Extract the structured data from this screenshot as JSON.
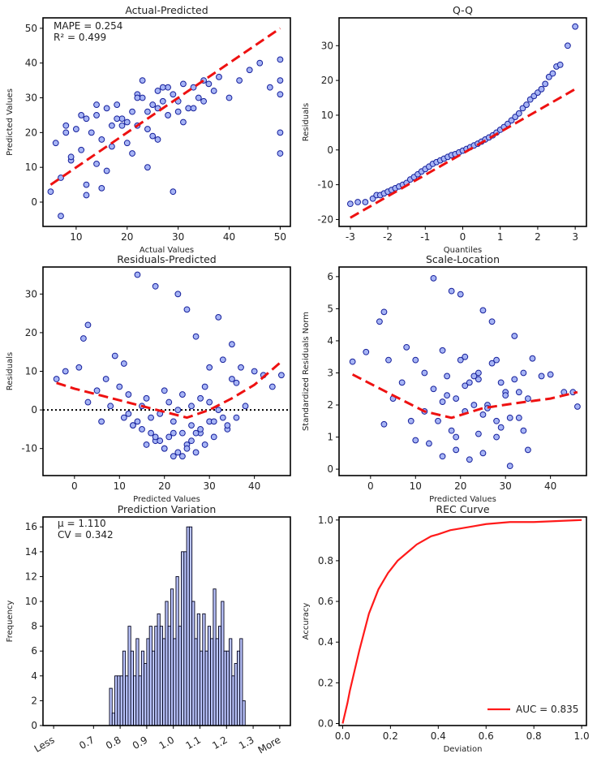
{
  "chart_data": [
    {
      "id": "actual_predicted",
      "type": "scatter",
      "title": "Actual-Predicted",
      "xlabel": "Actual Values",
      "ylabel": "Predicted Values",
      "xlim": [
        3.5,
        52
      ],
      "ylim": [
        -7,
        53
      ],
      "xticks": [
        10,
        20,
        30,
        40,
        50
      ],
      "yticks": [
        0,
        10,
        20,
        30,
        40,
        50
      ],
      "annotations": [
        "MAPE = 0.254",
        "R² = 0.499"
      ],
      "reference_line": {
        "x": [
          5,
          50
        ],
        "y": [
          5,
          50
        ],
        "style": "red dashed"
      },
      "series": [
        {
          "name": "samples",
          "x": [
            5,
            6,
            7,
            8,
            9,
            10,
            11,
            12,
            13,
            14,
            15,
            16,
            17,
            18,
            19,
            20,
            21,
            22,
            23,
            24,
            25,
            26,
            27,
            28,
            29,
            30,
            31,
            32,
            33,
            34,
            35,
            36,
            37,
            38,
            40,
            42,
            44,
            46,
            48,
            50,
            50,
            50,
            50,
            50,
            7,
            9,
            12,
            14,
            17,
            22,
            24,
            28,
            31,
            12,
            16,
            20,
            25,
            30,
            35,
            14,
            18,
            22,
            26,
            33,
            8,
            11,
            19,
            23,
            27,
            29,
            21,
            24,
            15,
            26
          ],
          "y": [
            3,
            17,
            -4,
            22,
            12,
            21,
            15,
            24,
            20,
            25,
            18,
            27,
            22,
            28,
            24,
            23,
            26,
            22,
            30,
            21,
            28,
            32,
            29,
            25,
            31,
            29,
            34,
            27,
            33,
            30,
            35,
            34,
            32,
            36,
            30,
            35,
            38,
            40,
            33,
            31,
            35,
            41,
            20,
            14,
            7,
            13,
            5,
            11,
            16,
            31,
            26,
            33,
            23,
            2,
            9,
            17,
            19,
            26,
            29,
            28,
            24,
            30,
            27,
            27,
            20,
            25,
            22,
            35,
            33,
            3,
            14,
            10,
            4,
            18
          ]
        }
      ]
    },
    {
      "id": "qq",
      "type": "scatter",
      "title": "Q-Q",
      "xlabel": "Quantiles",
      "ylabel": "Residuals",
      "xlim": [
        -3.3,
        3.3
      ],
      "ylim": [
        -22,
        38
      ],
      "xticks": [
        -3,
        -2,
        -1,
        0,
        1,
        2,
        3
      ],
      "yticks": [
        -20,
        -10,
        0,
        10,
        20,
        30
      ],
      "reference_line": {
        "x": [
          -3,
          3
        ],
        "y": [
          -19.5,
          17.5
        ],
        "style": "red dashed"
      },
      "series": [
        {
          "name": "residual quantiles",
          "x": [
            -3.0,
            -2.8,
            -2.6,
            -2.4,
            -2.3,
            -2.2,
            -2.1,
            -2.0,
            -1.9,
            -1.8,
            -1.7,
            -1.6,
            -1.5,
            -1.4,
            -1.3,
            -1.2,
            -1.1,
            -1.0,
            -0.9,
            -0.8,
            -0.7,
            -0.6,
            -0.5,
            -0.4,
            -0.3,
            -0.2,
            -0.1,
            0.0,
            0.1,
            0.2,
            0.3,
            0.4,
            0.5,
            0.6,
            0.7,
            0.8,
            0.9,
            1.0,
            1.1,
            1.2,
            1.3,
            1.4,
            1.5,
            1.6,
            1.7,
            1.8,
            1.9,
            2.0,
            2.1,
            2.2,
            2.3,
            2.4,
            2.5,
            2.6,
            2.8,
            3.0
          ],
          "y": [
            -15.5,
            -15,
            -15,
            -14,
            -13,
            -13,
            -12.5,
            -12,
            -11.5,
            -11,
            -10.5,
            -10,
            -9.5,
            -8.5,
            -7.8,
            -7,
            -6.2,
            -5.5,
            -4.8,
            -4,
            -3.5,
            -3,
            -2.5,
            -2,
            -1.5,
            -1.2,
            -0.7,
            -0.2,
            0.3,
            0.8,
            1.3,
            1.8,
            2.4,
            3,
            3.6,
            4.2,
            5,
            5.8,
            6.6,
            7.5,
            8.5,
            9.5,
            10.5,
            12,
            13,
            14.5,
            15.5,
            16.5,
            17.5,
            19,
            21,
            22,
            24,
            24.5,
            30,
            35.5
          ]
        }
      ]
    },
    {
      "id": "residuals_predicted",
      "type": "scatter",
      "title": "Residuals-Predicted",
      "xlabel": "Predicted Values",
      "ylabel": "Residuals",
      "xlim": [
        -7,
        48
      ],
      "ylim": [
        -17,
        37
      ],
      "xticks": [
        0,
        10,
        20,
        30,
        40
      ],
      "yticks": [
        -10,
        0,
        10,
        20,
        30
      ],
      "reference_line": {
        "x": [
          -4,
          0,
          5,
          10,
          15,
          20,
          25,
          30,
          35,
          40,
          46
        ],
        "y": [
          7,
          5.5,
          4,
          2.5,
          1,
          -0.5,
          -2,
          0,
          3,
          6.5,
          12.5
        ],
        "style": "red dashed"
      },
      "zero_line": "black dotted",
      "series": [
        {
          "name": "samples",
          "x": [
            -4,
            -2,
            1,
            2,
            3,
            3,
            5,
            6,
            7,
            8,
            9,
            10,
            11,
            12,
            13,
            14,
            15,
            15,
            16,
            17,
            18,
            18,
            19,
            20,
            20,
            21,
            22,
            22,
            23,
            23,
            24,
            24,
            25,
            25,
            26,
            26,
            27,
            27,
            28,
            28,
            29,
            30,
            30,
            31,
            32,
            32,
            33,
            34,
            35,
            35,
            36,
            37,
            38,
            40,
            42,
            44,
            46,
            16,
            18,
            26,
            25,
            24,
            20,
            22,
            14,
            12,
            28,
            30,
            34,
            36,
            19,
            21,
            23,
            27,
            29,
            31,
            33,
            17,
            13,
            11
          ],
          "y": [
            8,
            10,
            11,
            18.5,
            22,
            2,
            5,
            -3,
            8,
            1,
            14,
            6,
            12,
            4,
            -4,
            35,
            -5,
            1,
            3,
            -2,
            32,
            -8,
            -1,
            5,
            -10,
            2,
            -6,
            -3,
            30,
            0,
            -12,
            4,
            -9,
            26,
            -4,
            1,
            -11,
            19,
            3,
            -6,
            6,
            -3,
            11,
            -7,
            24,
            0,
            13,
            -5,
            8,
            17,
            -2,
            11,
            1,
            10,
            9,
            6,
            9,
            -9,
            -7,
            -8,
            -10,
            -6,
            -10,
            -12,
            -3,
            -1,
            -5,
            2,
            -4,
            7,
            -8,
            -7,
            -11,
            -6,
            -9,
            -3,
            -2,
            -6,
            -4,
            -2
          ]
        }
      ]
    },
    {
      "id": "scale_location",
      "type": "scatter",
      "title": "Scale-Location",
      "xlabel": "Predicted Values",
      "ylabel": "Standardized Residuals Norm",
      "xlim": [
        -7,
        48
      ],
      "ylim": [
        -0.2,
        6.3
      ],
      "xticks": [
        0,
        10,
        20,
        30,
        40
      ],
      "yticks": [
        0,
        1,
        2,
        3,
        4,
        5,
        6
      ],
      "reference_line": {
        "x": [
          -4,
          5,
          12,
          18,
          25,
          32,
          40,
          46
        ],
        "y": [
          2.95,
          2.3,
          1.8,
          1.6,
          1.9,
          2.05,
          2.2,
          2.4
        ],
        "style": "red dashed"
      },
      "series": [
        {
          "name": "samples",
          "x": [
            -4,
            -1,
            2,
            3,
            4,
            3,
            5,
            7,
            8,
            9,
            10,
            12,
            13,
            14,
            15,
            16,
            16,
            17,
            18,
            19,
            19,
            20,
            21,
            21,
            22,
            23,
            24,
            24,
            25,
            25,
            26,
            27,
            28,
            28,
            29,
            30,
            31,
            32,
            33,
            34,
            35,
            36,
            38,
            40,
            43,
            45,
            46,
            14,
            18,
            22,
            26,
            30,
            34,
            20,
            24,
            28,
            32,
            12,
            16,
            10,
            27,
            23,
            29,
            35,
            31,
            19,
            25,
            17,
            21,
            33
          ],
          "y": [
            3.35,
            3.65,
            4.6,
            4.9,
            3.4,
            1.4,
            2.2,
            2.7,
            3.8,
            1.5,
            3.4,
            3.0,
            0.8,
            5.95,
            1.5,
            3.7,
            0.4,
            2.9,
            5.55,
            2.2,
            0.6,
            5.45,
            1.8,
            3.5,
            0.3,
            2.9,
            1.1,
            3.0,
            4.95,
            0.5,
            2.0,
            4.6,
            3.4,
            1.0,
            2.7,
            2.4,
            0.1,
            4.15,
            1.6,
            3.0,
            0.6,
            3.45,
            2.9,
            2.95,
            2.4,
            2.4,
            1.95,
            2.5,
            1.2,
            2.7,
            1.9,
            2.3,
            1.2,
            3.4,
            2.8,
            1.5,
            2.8,
            1.8,
            2.1,
            0.9,
            3.3,
            2.0,
            1.3,
            2.2,
            1.6,
            1.0,
            1.7,
            2.3,
            2.6,
            2.4
          ]
        }
      ]
    },
    {
      "id": "prediction_variation",
      "type": "bar",
      "title": "Prediction Variation",
      "xlabel": "",
      "ylabel": "Frequency",
      "annotations": [
        "μ = 1.110",
        "CV = 0.342"
      ],
      "x_tick_labels": [
        "Less",
        "0.7",
        "0.8",
        "0.9",
        "1.0",
        "1.1",
        "1.2",
        "1.3",
        "More"
      ],
      "bin_start": 0.76,
      "bin_width": 0.01,
      "xlim": [
        0.51,
        1.44
      ],
      "ylim": [
        0,
        16.8
      ],
      "yticks": [
        0,
        2,
        4,
        6,
        8,
        10,
        12,
        14,
        16
      ],
      "values": [
        3,
        1,
        4,
        4,
        4,
        6,
        4,
        8,
        6,
        4,
        7,
        4,
        6,
        5,
        7,
        8,
        6,
        8,
        9,
        8,
        7,
        10,
        8,
        11,
        7,
        12,
        8,
        14,
        14,
        16,
        16,
        10,
        7,
        9,
        6,
        9,
        6,
        8,
        7,
        11,
        7,
        8,
        10,
        6,
        6,
        7,
        4,
        5,
        6,
        7,
        2
      ]
    },
    {
      "id": "rec_curve",
      "type": "line",
      "title": "REC Curve",
      "xlabel": "Deviation",
      "ylabel": "Accuracy",
      "xlim": [
        -0.015,
        1.02
      ],
      "ylim": [
        -0.01,
        1.015
      ],
      "xticks": [
        0.0,
        0.2,
        0.4,
        0.6,
        0.8,
        1.0
      ],
      "yticks": [
        0.0,
        0.2,
        0.4,
        0.6,
        0.8,
        1.0
      ],
      "legend": {
        "label": "AUC = 0.835",
        "position": "lower-right"
      },
      "series": [
        {
          "name": "AUC = 0.835",
          "x": [
            0,
            0.01,
            0.02,
            0.03,
            0.05,
            0.07,
            0.09,
            0.11,
            0.13,
            0.15,
            0.17,
            0.19,
            0.21,
            0.23,
            0.25,
            0.28,
            0.31,
            0.34,
            0.37,
            0.4,
            0.45,
            0.5,
            0.55,
            0.6,
            0.65,
            0.7,
            0.8,
            0.9,
            1.0
          ],
          "y": [
            0,
            0.05,
            0.1,
            0.16,
            0.26,
            0.36,
            0.45,
            0.54,
            0.6,
            0.66,
            0.7,
            0.74,
            0.77,
            0.8,
            0.82,
            0.85,
            0.88,
            0.9,
            0.92,
            0.93,
            0.95,
            0.96,
            0.97,
            0.98,
            0.985,
            0.99,
            0.99,
            0.995,
            1.0
          ]
        }
      ]
    }
  ]
}
